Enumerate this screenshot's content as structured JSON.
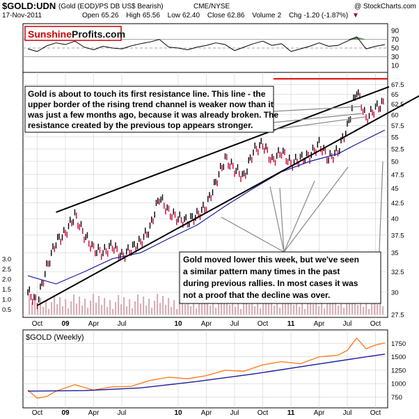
{
  "header": {
    "symbol": "$GOLD:UDN",
    "description": "(Gold (EOD)/PS DB US$ Bearish)",
    "exchange": "CME/NYSE",
    "credit": "@ StockCharts.com",
    "date": "17-Nov-2011",
    "open_label": "Open",
    "open": "65.26",
    "high_label": "High",
    "high": "65.56",
    "low_label": "Low",
    "low": "62.40",
    "close_label": "Close",
    "close": "62.86",
    "volume_label": "Volume",
    "volume": "2",
    "chg_label": "Chg",
    "chg": "-1.20 (-1.87%)",
    "chg_arrow": "▼"
  },
  "logo": {
    "part1": "Sunshine",
    "part2": "Profits.com"
  },
  "annotations": [
    {
      "lines": [
        "Gold is about to touch its first resistance line. This line - the",
        "upper border of the rising trend channel is weaker now than it",
        "was just a few months ago, because it was already broken. The",
        "resistance created by the previous top appears stronger."
      ]
    },
    {
      "lines": [
        "Gold moved lower this week, but we've seen",
        "a similar pattern many times in the past",
        "during previous rallies. In most cases it was",
        "not a proof that the decline was over."
      ]
    }
  ],
  "colors": {
    "price_up": "#000000",
    "price_down": "#cc0033",
    "moving_average": "#1a1aa0",
    "trend_line": "#000000",
    "resistance": "#dd0000",
    "rsi_overbought_fill": "#3a7a3a",
    "volume": "#d8b0b8",
    "weekly_price": "#ff8020",
    "weekly_ma": "#1a1aa0",
    "gridline": "#d0d0d0"
  },
  "chart_data": [
    {
      "type": "line",
      "panel": "rsi",
      "ylim": [
        0,
        100
      ],
      "y_ticks": [
        10,
        30,
        50,
        70,
        90
      ],
      "reference_lines": [
        30,
        50,
        70
      ],
      "x": [
        "2008-09",
        "2008-10",
        "2008-11",
        "2008-12",
        "2009-01",
        "2009-02",
        "2009-03",
        "2009-04",
        "2009-05",
        "2009-06",
        "2009-07",
        "2009-08",
        "2009-09",
        "2009-10",
        "2009-11",
        "2009-12",
        "2010-01",
        "2010-02",
        "2010-03",
        "2010-04",
        "2010-05",
        "2010-06",
        "2010-07",
        "2010-08",
        "2010-09",
        "2010-10",
        "2010-11",
        "2010-12",
        "2011-01",
        "2011-02",
        "2011-03",
        "2011-04",
        "2011-05",
        "2011-06",
        "2011-07",
        "2011-08",
        "2011-09",
        "2011-10",
        "2011-11"
      ],
      "values": [
        48,
        42,
        55,
        62,
        58,
        66,
        52,
        46,
        54,
        50,
        48,
        55,
        60,
        64,
        70,
        52,
        50,
        46,
        52,
        56,
        62,
        58,
        44,
        52,
        60,
        66,
        56,
        60,
        42,
        48,
        54,
        62,
        54,
        56,
        66,
        76,
        48,
        54,
        58
      ]
    },
    {
      "type": "line",
      "panel": "daily",
      "ylim": [
        27.5,
        70
      ],
      "y_scale": "log",
      "y_ticks": [
        27.5,
        30,
        32.5,
        35,
        37.5,
        40,
        42.5,
        45,
        47.5,
        50,
        52.5,
        55,
        57.5,
        60,
        62.5,
        65,
        67.5
      ],
      "x_ticks": [
        "Oct",
        "09",
        "Apr",
        "Jul",
        "10",
        "Apr",
        "Jul",
        "Oct",
        "11",
        "Apr",
        "Jul",
        "Oct"
      ],
      "volume_ticks": [
        "0.5",
        "1.0",
        "1.5",
        "2.0",
        "2.5",
        "3.0"
      ],
      "series": [
        {
          "x": [
            "2008-09",
            "2008-10",
            "2008-11",
            "2008-12",
            "2009-01",
            "2009-02",
            "2009-03",
            "2009-04",
            "2009-05",
            "2009-06",
            "2009-07",
            "2009-08",
            "2009-09",
            "2009-10",
            "2009-11",
            "2009-12",
            "2010-01",
            "2010-02",
            "2010-03",
            "2010-04",
            "2010-05",
            "2010-06",
            "2010-07",
            "2010-08",
            "2010-09",
            "2010-10",
            "2010-11",
            "2010-12",
            "2011-01",
            "2011-02",
            "2011-03",
            "2011-04",
            "2011-05",
            "2011-06",
            "2011-07",
            "2011-08",
            "2011-09",
            "2011-10",
            "2011-11"
          ],
          "values": [
            30,
            28.8,
            33,
            36.5,
            37.8,
            40.5,
            37.5,
            35.5,
            35,
            36,
            34.5,
            35.5,
            36.5,
            38.5,
            43.5,
            41,
            40,
            39.5,
            40.5,
            42,
            46,
            50.5,
            48.5,
            47,
            52,
            53.5,
            50,
            52,
            49.5,
            50.5,
            51,
            53.5,
            50.5,
            52,
            57,
            66,
            59,
            61.5,
            62.86
          ]
        },
        {
          "x": [
            "2008-09",
            "2008-12",
            "2009-03",
            "2009-06",
            "2009-09",
            "2009-12",
            "2010-03",
            "2010-06",
            "2010-09",
            "2010-12",
            "2011-03",
            "2011-06",
            "2011-08",
            "2011-10",
            "2011-11"
          ],
          "values": [
            32,
            31,
            32.5,
            34.2,
            35,
            37,
            39,
            42,
            45,
            48,
            50,
            51.5,
            53.5,
            55.5,
            56.5
          ]
        }
      ],
      "trendlines": [
        {
          "from": [
            "2008-10",
            28.5
          ],
          "to": [
            "2011-11",
            60.0
          ]
        },
        {
          "from": [
            "2008-12",
            41.0
          ],
          "to": [
            "2011-11",
            66.5
          ]
        }
      ],
      "resistance": 69.0
    },
    {
      "type": "line",
      "panel": "weekly",
      "title": "$GOLD (Weekly)",
      "ylim": [
        600,
        1950
      ],
      "y_ticks": [
        750,
        1000,
        1250,
        1500,
        1750
      ],
      "x_ticks": [
        "Oct",
        "09",
        "Apr",
        "Jul",
        "10",
        "Apr",
        "Jul",
        "Oct",
        "11",
        "Apr",
        "Jul",
        "Oct"
      ],
      "series": [
        {
          "x": [
            "2008-09",
            "2008-10",
            "2008-11",
            "2008-12",
            "2009-02",
            "2009-04",
            "2009-06",
            "2009-08",
            "2009-10",
            "2009-12",
            "2010-02",
            "2010-04",
            "2010-06",
            "2010-08",
            "2010-10",
            "2010-12",
            "2011-02",
            "2011-04",
            "2011-06",
            "2011-07",
            "2011-08",
            "2011-09",
            "2011-10",
            "2011-11"
          ],
          "values": [
            880,
            730,
            760,
            860,
            980,
            880,
            940,
            950,
            1060,
            1120,
            1090,
            1150,
            1250,
            1230,
            1350,
            1410,
            1370,
            1500,
            1530,
            1620,
            1850,
            1650,
            1720,
            1760
          ]
        },
        {
          "x": [
            "2008-09",
            "2009-03",
            "2009-09",
            "2010-03",
            "2010-09",
            "2011-03",
            "2011-09",
            "2011-11"
          ],
          "values": [
            860,
            870,
            920,
            1040,
            1180,
            1340,
            1500,
            1550
          ]
        }
      ]
    }
  ]
}
